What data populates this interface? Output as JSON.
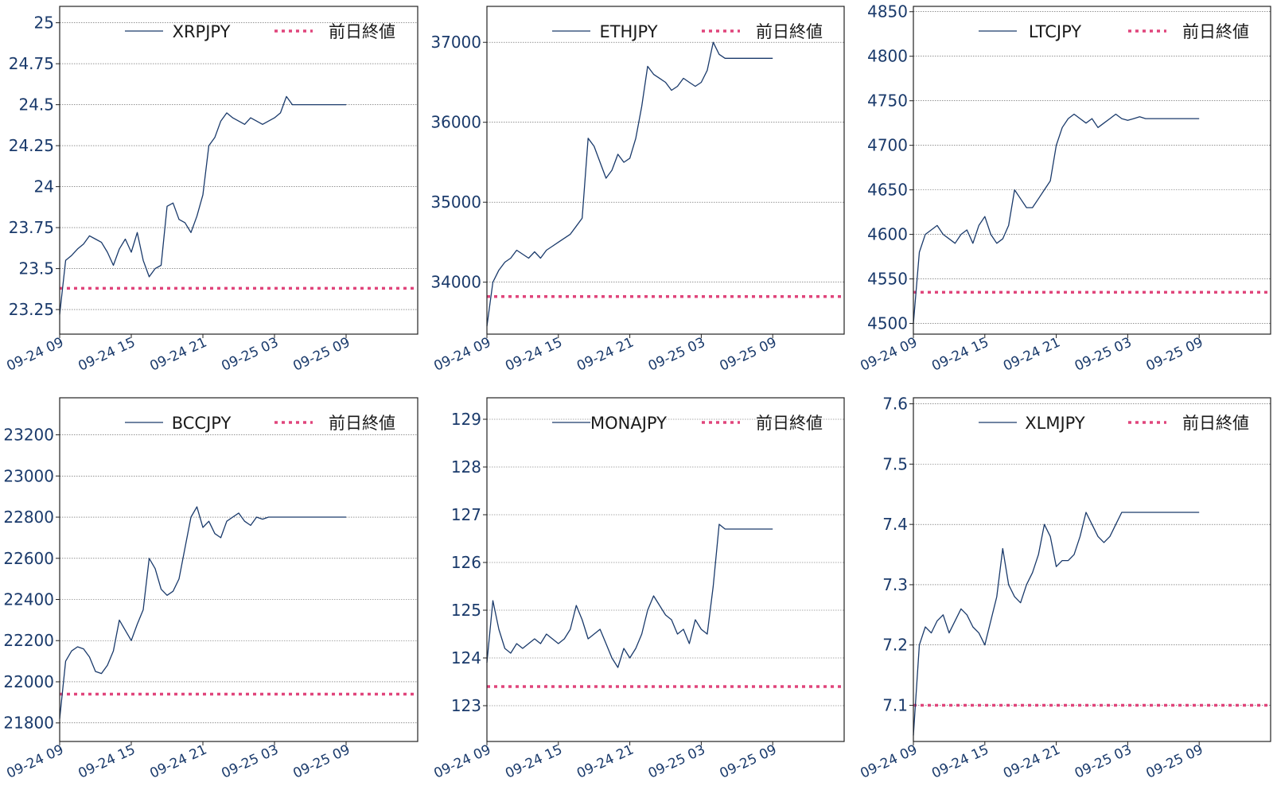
{
  "colors": {
    "series": "#1a3a6b",
    "reference": "#e0457b",
    "text": "#1a3a6b"
  },
  "x_ticks": [
    "09-24 09",
    "09-24 15",
    "09-24 21",
    "09-25 03",
    "09-25 09"
  ],
  "reference_label": "前日終値",
  "chart_data": [
    {
      "type": "line",
      "series": [
        {
          "name": "XRPJPY",
          "x": [
            0,
            0.5,
            1,
            1.5,
            2,
            2.5,
            3,
            3.5,
            4,
            4.5,
            5,
            5.5,
            6,
            6.5,
            7,
            7.5,
            8,
            8.5,
            9,
            9.5,
            10,
            10.5,
            11,
            11.5,
            12,
            12.5,
            13,
            13.5,
            14,
            14.5,
            15,
            15.5,
            16,
            16.5,
            17,
            17.5,
            18,
            18.5,
            19,
            19.5,
            20,
            20.5,
            21,
            21.5,
            22,
            22.5,
            23,
            23.5,
            24
          ],
          "values": [
            23.22,
            23.55,
            23.58,
            23.62,
            23.65,
            23.7,
            23.68,
            23.66,
            23.6,
            23.52,
            23.62,
            23.68,
            23.6,
            23.72,
            23.55,
            23.45,
            23.5,
            23.52,
            23.88,
            23.9,
            23.8,
            23.78,
            23.72,
            23.82,
            23.95,
            24.25,
            24.3,
            24.4,
            24.45,
            24.42,
            24.4,
            24.38,
            24.42,
            24.4,
            24.38,
            24.4,
            24.42,
            24.45,
            24.55,
            24.5,
            24.5,
            24.5,
            24.5,
            24.5,
            24.5,
            24.5,
            24.5,
            24.5,
            24.5
          ]
        }
      ],
      "reference": 23.38,
      "yticks": [
        23.25,
        23.5,
        23.75,
        24.0,
        24.25,
        24.5,
        24.75,
        25.0
      ],
      "ylim": [
        23.1,
        25.1
      ],
      "xlim": [
        0,
        30
      ]
    },
    {
      "type": "line",
      "series": [
        {
          "name": "ETHJPY",
          "x": [
            0,
            0.5,
            1,
            1.5,
            2,
            2.5,
            3,
            3.5,
            4,
            4.5,
            5,
            5.5,
            6,
            6.5,
            7,
            7.5,
            8,
            8.5,
            9,
            9.5,
            10,
            10.5,
            11,
            11.5,
            12,
            12.5,
            13,
            13.5,
            14,
            14.5,
            15,
            15.5,
            16,
            16.5,
            17,
            17.5,
            18,
            18.5,
            19,
            19.5,
            20,
            20.5,
            21,
            21.5,
            22,
            22.5,
            23,
            23.5,
            24
          ],
          "values": [
            33450,
            34000,
            34150,
            34250,
            34300,
            34400,
            34350,
            34300,
            34380,
            34300,
            34400,
            34450,
            34500,
            34550,
            34600,
            34700,
            34800,
            35800,
            35700,
            35500,
            35300,
            35400,
            35600,
            35500,
            35550,
            35800,
            36200,
            36700,
            36600,
            36550,
            36500,
            36400,
            36450,
            36550,
            36500,
            36450,
            36500,
            36650,
            37000,
            36850,
            36800,
            36800,
            36800,
            36800,
            36800,
            36800,
            36800,
            36800,
            36800
          ]
        }
      ],
      "reference": 33820,
      "yticks": [
        34000,
        35000,
        36000,
        37000
      ],
      "ylim": [
        33350,
        37450
      ],
      "xlim": [
        0,
        30
      ]
    },
    {
      "type": "line",
      "series": [
        {
          "name": "LTCJPY",
          "x": [
            0,
            0.5,
            1,
            1.5,
            2,
            2.5,
            3,
            3.5,
            4,
            4.5,
            5,
            5.5,
            6,
            6.5,
            7,
            7.5,
            8,
            8.5,
            9,
            9.5,
            10,
            10.5,
            11,
            11.5,
            12,
            12.5,
            13,
            13.5,
            14,
            14.5,
            15,
            15.5,
            16,
            16.5,
            17,
            17.5,
            18,
            18.5,
            19,
            19.5,
            20,
            20.5,
            21,
            21.5,
            22,
            22.5,
            23,
            23.5,
            24
          ],
          "values": [
            4500,
            4580,
            4600,
            4605,
            4610,
            4600,
            4595,
            4590,
            4600,
            4605,
            4590,
            4610,
            4620,
            4600,
            4590,
            4595,
            4610,
            4650,
            4640,
            4630,
            4630,
            4640,
            4650,
            4660,
            4700,
            4720,
            4730,
            4735,
            4730,
            4725,
            4730,
            4720,
            4725,
            4730,
            4735,
            4730,
            4728,
            4730,
            4732,
            4730,
            4730,
            4730,
            4730,
            4730,
            4730,
            4730,
            4730,
            4730,
            4730
          ]
        }
      ],
      "reference": 4535,
      "yticks": [
        4500,
        4550,
        4600,
        4650,
        4700,
        4750,
        4800,
        4850
      ],
      "ylim": [
        4488,
        4856
      ],
      "xlim": [
        0,
        30
      ]
    },
    {
      "type": "line",
      "series": [
        {
          "name": "BCCJPY",
          "x": [
            0,
            0.5,
            1,
            1.5,
            2,
            2.5,
            3,
            3.5,
            4,
            4.5,
            5,
            5.5,
            6,
            6.5,
            7,
            7.5,
            8,
            8.5,
            9,
            9.5,
            10,
            10.5,
            11,
            11.5,
            12,
            12.5,
            13,
            13.5,
            14,
            14.5,
            15,
            15.5,
            16,
            16.5,
            17,
            17.5,
            18,
            18.5,
            19,
            19.5,
            20,
            20.5,
            21,
            21.5,
            22,
            22.5,
            23,
            23.5,
            24
          ],
          "values": [
            21820,
            22100,
            22150,
            22170,
            22160,
            22120,
            22050,
            22040,
            22080,
            22150,
            22300,
            22250,
            22200,
            22280,
            22350,
            22600,
            22550,
            22450,
            22420,
            22440,
            22500,
            22650,
            22800,
            22850,
            22750,
            22780,
            22720,
            22700,
            22780,
            22800,
            22820,
            22780,
            22760,
            22800,
            22790,
            22800,
            22800,
            22800,
            22800,
            22800,
            22800,
            22800,
            22800,
            22800,
            22800,
            22800,
            22800,
            22800,
            22800
          ]
        }
      ],
      "reference": 21940,
      "yticks": [
        21800,
        22000,
        22200,
        22400,
        22600,
        22800,
        23000,
        23200
      ],
      "ylim": [
        21710,
        23380
      ],
      "xlim": [
        0,
        30
      ]
    },
    {
      "type": "line",
      "series": [
        {
          "name": "MONAJPY",
          "x": [
            0,
            0.5,
            1,
            1.5,
            2,
            2.5,
            3,
            3.5,
            4,
            4.5,
            5,
            5.5,
            6,
            6.5,
            7,
            7.5,
            8,
            8.5,
            9,
            9.5,
            10,
            10.5,
            11,
            11.5,
            12,
            12.5,
            13,
            13.5,
            14,
            14.5,
            15,
            15.5,
            16,
            16.5,
            17,
            17.5,
            18,
            18.5,
            19,
            19.5,
            20,
            20.5,
            21,
            21.5,
            22,
            22.5,
            23,
            23.5,
            24
          ],
          "values": [
            123.9,
            125.2,
            124.6,
            124.2,
            124.1,
            124.3,
            124.2,
            124.3,
            124.4,
            124.3,
            124.5,
            124.4,
            124.3,
            124.4,
            124.6,
            125.1,
            124.8,
            124.4,
            124.5,
            124.6,
            124.3,
            124.0,
            123.8,
            124.2,
            124.0,
            124.2,
            124.5,
            125.0,
            125.3,
            125.1,
            124.9,
            124.8,
            124.5,
            124.6,
            124.3,
            124.8,
            124.6,
            124.5,
            125.5,
            126.8,
            126.7,
            126.7,
            126.7,
            126.7,
            126.7,
            126.7,
            126.7,
            126.7,
            126.7
          ]
        }
      ],
      "reference": 123.4,
      "yticks": [
        123,
        124,
        125,
        126,
        127,
        128,
        129
      ],
      "ylim": [
        122.25,
        129.45
      ],
      "xlim": [
        0,
        30
      ]
    },
    {
      "type": "line",
      "series": [
        {
          "name": "XLMJPY",
          "x": [
            0,
            0.5,
            1,
            1.5,
            2,
            2.5,
            3,
            3.5,
            4,
            4.5,
            5,
            5.5,
            6,
            6.5,
            7,
            7.5,
            8,
            8.5,
            9,
            9.5,
            10,
            10.5,
            11,
            11.5,
            12,
            12.5,
            13,
            13.5,
            14,
            14.5,
            15,
            15.5,
            16,
            16.5,
            17,
            17.5,
            18,
            18.5,
            19,
            19.5,
            20,
            20.5,
            21,
            21.5,
            22,
            22.5,
            23,
            23.5,
            24
          ],
          "values": [
            7.05,
            7.2,
            7.23,
            7.22,
            7.24,
            7.25,
            7.22,
            7.24,
            7.26,
            7.25,
            7.23,
            7.22,
            7.2,
            7.24,
            7.28,
            7.36,
            7.3,
            7.28,
            7.27,
            7.3,
            7.32,
            7.35,
            7.4,
            7.38,
            7.33,
            7.34,
            7.34,
            7.35,
            7.38,
            7.42,
            7.4,
            7.38,
            7.37,
            7.38,
            7.4,
            7.42,
            7.42,
            7.42,
            7.42,
            7.42,
            7.42,
            7.42,
            7.42,
            7.42,
            7.42,
            7.42,
            7.42,
            7.42,
            7.42
          ]
        }
      ],
      "reference": 7.1,
      "yticks": [
        7.1,
        7.2,
        7.3,
        7.4,
        7.5,
        7.6
      ],
      "ylim": [
        7.04,
        7.61
      ],
      "xlim": [
        0,
        30
      ]
    }
  ]
}
